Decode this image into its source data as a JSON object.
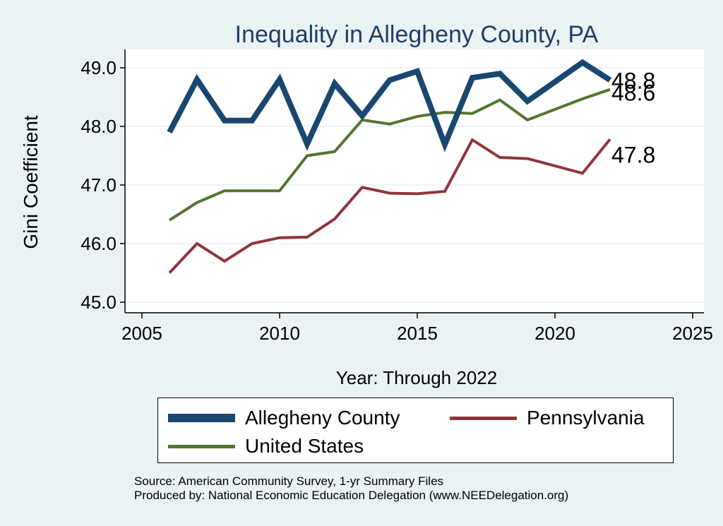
{
  "chart_data": {
    "type": "line",
    "title": "Inequality in Allegheny County, PA",
    "xlabel": "Year: Through 2022",
    "ylabel": "Gini Coefficient",
    "xlim": [
      2005,
      2025
    ],
    "ylim": [
      45.0,
      49.3
    ],
    "xticks": [
      2005,
      2010,
      2015,
      2020,
      2025
    ],
    "yticks": [
      45.0,
      46.0,
      47.0,
      48.0,
      49.0
    ],
    "ytick_labels": [
      "45.0",
      "46.0",
      "47.0",
      "48.0",
      "49.0"
    ],
    "grid": "horizontal",
    "legend_position": "bottom",
    "series": [
      {
        "name": "Allegheny County",
        "color": "#1a476f",
        "x": [
          2006,
          2007,
          2008,
          2009,
          2010,
          2011,
          2012,
          2013,
          2014,
          2015,
          2016,
          2017,
          2018,
          2019,
          2021,
          2022
        ],
        "values": [
          47.9,
          48.8,
          48.1,
          48.1,
          48.8,
          47.7,
          48.73,
          48.18,
          48.79,
          48.94,
          47.69,
          48.83,
          48.9,
          48.43,
          49.09,
          48.79
        ],
        "end_label": "48.8"
      },
      {
        "name": "Pennsylvania",
        "color": "#90353b",
        "x": [
          2006,
          2007,
          2008,
          2009,
          2010,
          2011,
          2012,
          2013,
          2014,
          2015,
          2016,
          2017,
          2018,
          2019,
          2021,
          2022
        ],
        "values": [
          45.5,
          46.0,
          45.7,
          46.0,
          46.1,
          46.11,
          46.42,
          46.96,
          46.86,
          46.85,
          46.89,
          47.77,
          47.47,
          47.45,
          47.2,
          47.78
        ],
        "end_label": "47.8"
      },
      {
        "name": "United States",
        "color": "#55752f",
        "x": [
          2006,
          2007,
          2008,
          2009,
          2010,
          2011,
          2012,
          2013,
          2014,
          2015,
          2016,
          2017,
          2018,
          2019,
          2021,
          2022
        ],
        "values": [
          46.4,
          46.7,
          46.9,
          46.9,
          46.9,
          47.5,
          47.57,
          48.11,
          48.04,
          48.17,
          48.24,
          48.22,
          48.45,
          48.11,
          48.47,
          48.63
        ],
        "end_label": "48.6"
      }
    ]
  },
  "legend": {
    "items": [
      {
        "label": "Allegheny County",
        "color": "#1a476f"
      },
      {
        "label": "Pennsylvania",
        "color": "#90353b"
      },
      {
        "label": "United States",
        "color": "#55752f"
      }
    ]
  },
  "source": {
    "line1": "Source: American Community Survey, 1-yr Summary Files",
    "line2": "Produced by: National Economic Education Delegation (www.NEEDelegation.org)"
  }
}
